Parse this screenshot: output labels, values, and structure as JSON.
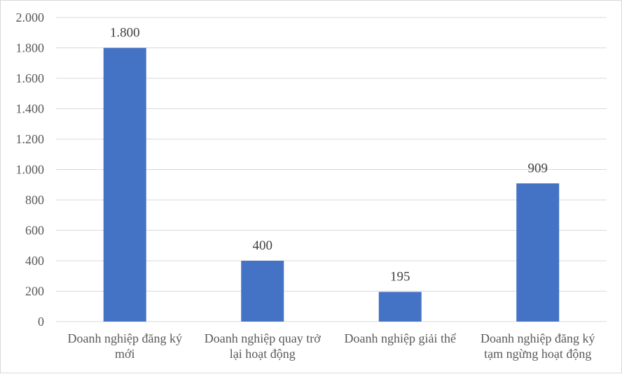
{
  "chart_data": {
    "type": "bar",
    "title": "",
    "xlabel": "",
    "ylabel": "",
    "categories": [
      [
        "Doanh nghiệp đăng ký",
        "mới"
      ],
      [
        "Doanh nghiệp quay trở",
        "lại hoạt động"
      ],
      [
        "Doanh nghiệp giải thể"
      ],
      [
        "Doanh nghiệp đăng ký",
        "tạm ngừng hoạt động"
      ]
    ],
    "values": [
      1800,
      400,
      195,
      909
    ],
    "value_labels": [
      "1.800",
      "400",
      "195",
      "909"
    ],
    "ylim": [
      0,
      2000
    ],
    "yticks": [
      0,
      200,
      400,
      600,
      800,
      1000,
      1200,
      1400,
      1600,
      1800,
      2000
    ],
    "ytick_labels": [
      "0",
      "200",
      "400",
      "600",
      "800",
      "1.000",
      "1.200",
      "1.400",
      "1.600",
      "1.800",
      "2.000"
    ],
    "grid": true,
    "legend": "none",
    "bar_color": "#4472c4"
  }
}
